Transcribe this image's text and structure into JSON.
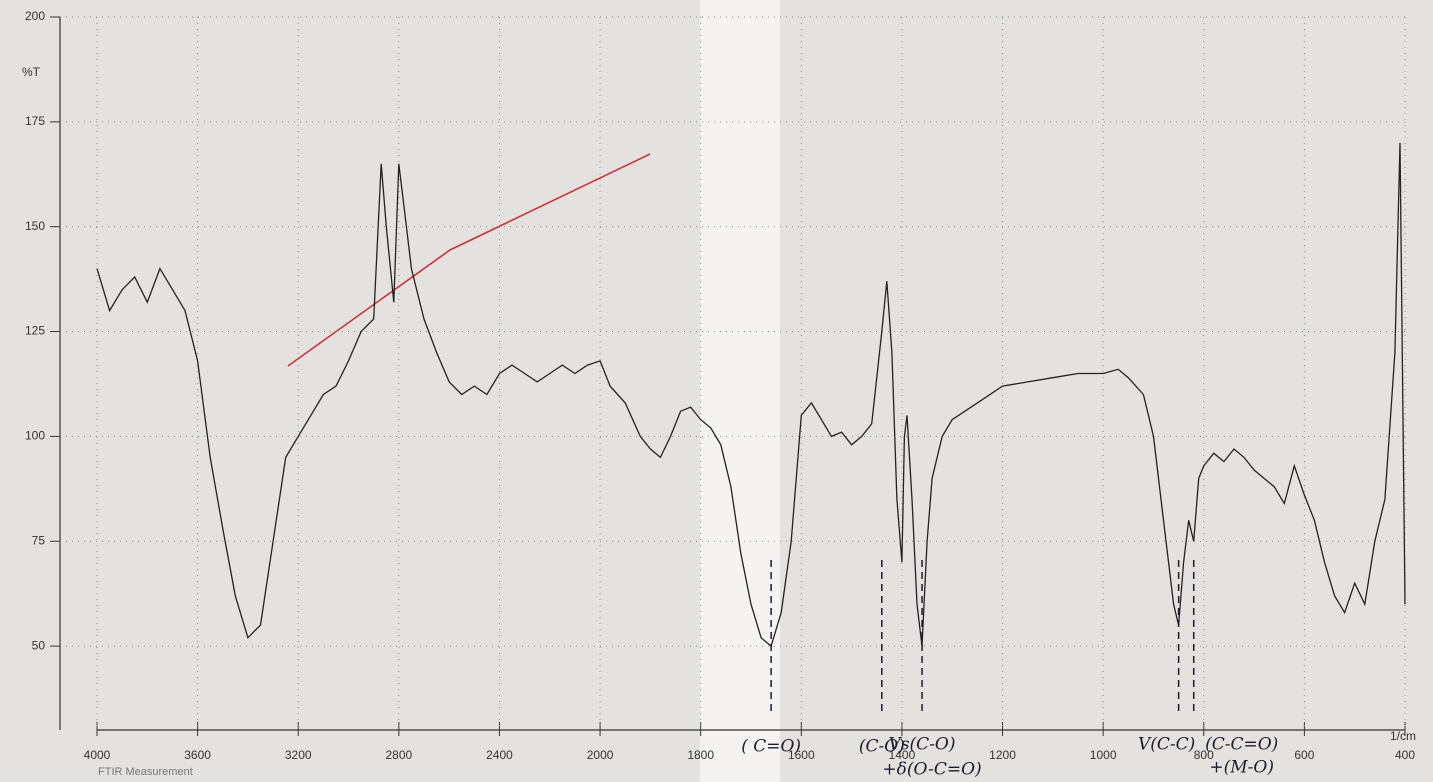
{
  "chart_data": {
    "type": "line",
    "title": "FTIR Measurement",
    "ylabel": "%T",
    "xlabel": "1/cm",
    "xlim": [
      4000,
      400
    ],
    "xscale_break": {
      "at": 2000,
      "factor": 2
    },
    "xticks": [
      4000,
      3600,
      3200,
      2800,
      2400,
      2000,
      1800,
      1600,
      1400,
      1200,
      1000,
      800,
      600,
      400
    ],
    "ylim": [
      30,
      200
    ],
    "yticks": [
      50,
      75,
      100,
      125,
      150,
      175,
      200
    ],
    "grid": true,
    "color": "#222222",
    "x": [
      4000,
      3950,
      3900,
      3850,
      3800,
      3750,
      3700,
      3650,
      3600,
      3550,
      3500,
      3450,
      3400,
      3350,
      3300,
      3250,
      3200,
      3150,
      3100,
      3050,
      3000,
      2950,
      2900,
      2870,
      2850,
      2820,
      2800,
      2780,
      2750,
      2700,
      2650,
      2600,
      2550,
      2500,
      2450,
      2400,
      2350,
      2300,
      2250,
      2200,
      2150,
      2100,
      2050,
      2000,
      1980,
      1950,
      1920,
      1900,
      1880,
      1860,
      1840,
      1820,
      1800,
      1780,
      1760,
      1740,
      1720,
      1700,
      1680,
      1660,
      1640,
      1620,
      1600,
      1580,
      1560,
      1540,
      1520,
      1500,
      1480,
      1460,
      1440,
      1430,
      1420,
      1410,
      1400,
      1395,
      1390,
      1380,
      1370,
      1360,
      1350,
      1340,
      1320,
      1300,
      1250,
      1200,
      1150,
      1100,
      1050,
      1000,
      970,
      950,
      920,
      900,
      880,
      860,
      850,
      840,
      830,
      820,
      810,
      800,
      780,
      760,
      740,
      720,
      700,
      680,
      660,
      640,
      620,
      600,
      580,
      560,
      540,
      520,
      500,
      480,
      460,
      440,
      420,
      410,
      400
    ],
    "values": [
      140,
      130,
      135,
      138,
      132,
      140,
      135,
      130,
      118,
      95,
      78,
      62,
      52,
      55,
      75,
      95,
      100,
      105,
      110,
      112,
      118,
      125,
      128,
      165,
      150,
      132,
      165,
      155,
      140,
      128,
      120,
      113,
      110,
      112,
      110,
      115,
      117,
      115,
      113,
      115,
      117,
      115,
      117,
      118,
      112,
      108,
      100,
      97,
      95,
      100,
      106,
      107,
      104,
      102,
      98,
      88,
      72,
      60,
      52,
      50,
      58,
      75,
      105,
      108,
      104,
      100,
      101,
      98,
      100,
      103,
      125,
      137,
      120,
      85,
      70,
      100,
      105,
      85,
      60,
      50,
      75,
      90,
      100,
      104,
      108,
      112,
      113,
      114,
      115,
      115,
      116,
      114,
      110,
      100,
      80,
      60,
      55,
      70,
      80,
      75,
      90,
      93,
      96,
      94,
      97,
      95,
      92,
      90,
      88,
      84,
      93,
      86,
      80,
      70,
      62,
      58,
      65,
      60,
      75,
      85,
      120,
      170,
      60
    ],
    "annotations": [
      {
        "text": "( C=O)",
        "x": 1660
      },
      {
        "text": "(C-O)",
        "x": 1440
      },
      {
        "text": "Vs(C-O)",
        "x": 1360
      },
      {
        "text": "+δ(O-C=O)",
        "x": 1360
      },
      {
        "text": "V(C-C)",
        "x": 850
      },
      {
        "text": "(C-C=O)",
        "x": 820
      },
      {
        "text": "+(M-O)",
        "x": 820
      }
    ]
  }
}
